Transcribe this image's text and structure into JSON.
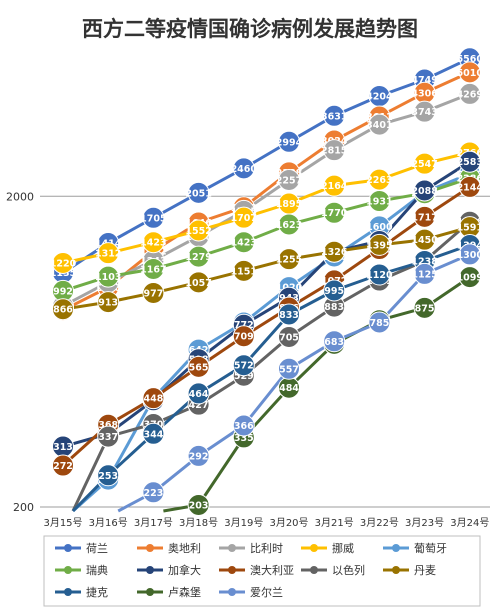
{
  "chart_data": {
    "type": "line",
    "title": "西方二等疫情国确诊病例发展趋势图",
    "y_scale": "log",
    "ylim": [
      200,
      6000
    ],
    "yticks": [
      "200",
      "2000"
    ],
    "categories": [
      "3月15号",
      "3月16号",
      "3月17号",
      "3月18号",
      "3月19号",
      "3月20号",
      "3月21号",
      "3月22号",
      "3月23号",
      "3月24号"
    ],
    "series": [
      {
        "name": "荷兰",
        "color": "#4472C4",
        "values": [
          1135,
          1414,
          1705,
          2051,
          2460,
          2994,
          3631,
          4204,
          4749,
          5560
        ]
      },
      {
        "name": "奥地利",
        "color": "#ED7D31",
        "values": [
          860,
          1018,
          1332,
          1646,
          1843,
          2388,
          3024,
          3611,
          4306,
          5010
        ]
      },
      {
        "name": "比利时",
        "color": "#A5A5A5",
        "values": [
          886,
          1058,
          1243,
          1486,
          1795,
          2257,
          2815,
          3401,
          3743,
          4269
        ]
      },
      {
        "name": "挪威",
        "color": "#FFC000",
        "values": [
          1220,
          1312,
          1423,
          1552,
          1707,
          1895,
          2164,
          2263,
          2547,
          2766
        ]
      },
      {
        "name": "葡萄牙",
        "color": "#5B9BD5",
        "values": [
          null,
          245,
          448,
          642,
          785,
          1020,
          1280,
          1600,
          2060,
          2362
        ]
      },
      {
        "name": "瑞典",
        "color": "#70AD47",
        "values": [
          992,
          1103,
          1167,
          1279,
          1423,
          1623,
          1770,
          1931,
          2046,
          2286
        ]
      },
      {
        "name": "加拿大",
        "color": "#264478",
        "values": [
          313,
          344,
          441,
          598,
          772,
          943,
          1326,
          1436,
          2088,
          2583
        ]
      },
      {
        "name": "澳大利亚",
        "color": "#9E480E",
        "values": [
          272,
          368,
          448,
          565,
          709,
          876,
          1072,
          1353,
          1717,
          2144
        ]
      },
      {
        "name": "以色列",
        "color": "#636363",
        "values": [
          null,
          337,
          370,
          427,
          529,
          705,
          883,
          1071,
          1238,
          1656
        ]
      },
      {
        "name": "丹麦",
        "color": "#997300",
        "values": [
          866,
          913,
          977,
          1057,
          1151,
          1255,
          1326,
          1395,
          1450,
          1591
        ]
      },
      {
        "name": "捷克",
        "color": "#255E91",
        "values": [
          null,
          253,
          344,
          464,
          572,
          833,
          995,
          1120,
          1238,
          1394
        ]
      },
      {
        "name": "卢森堡",
        "color": "#43682B",
        "values": [
          null,
          null,
          null,
          203,
          335,
          484,
          670,
          798,
          875,
          1099
        ]
      },
      {
        "name": "爱尔兰",
        "color": "#698ED0",
        "values": [
          null,
          null,
          223,
          292,
          366,
          557,
          683,
          785,
          1125,
          1300
        ]
      }
    ]
  }
}
